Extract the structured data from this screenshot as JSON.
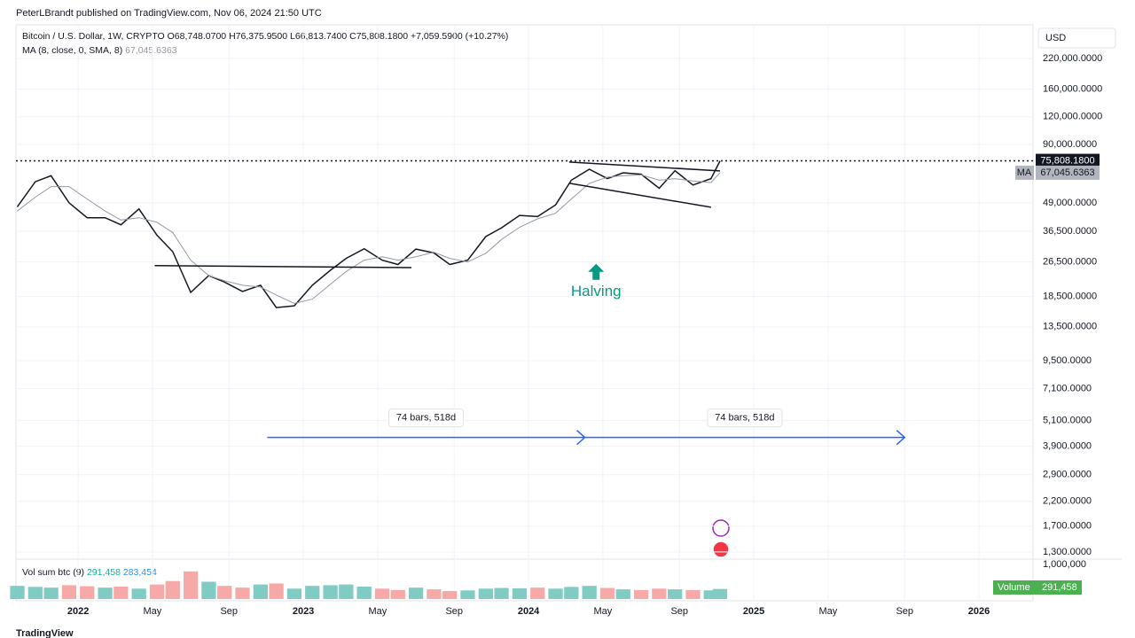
{
  "header": {
    "publisher": "PeterLBrandt published on TradingView.com, Nov 06, 2024 21:50 UTC",
    "footer": "TradingView"
  },
  "legend": {
    "symbol": "Bitcoin / U.S. Dollar, 1W, CRYPTO",
    "open": "O68,748.0700",
    "high": "H76,375.9500",
    "low": "L66,813.7400",
    "close": "C75,808.1800",
    "change": "+7,059.5900 (+10.27%)",
    "ma_label": "MA (8, close, 0, SMA, 8)",
    "ma_value": "67,045.6363"
  },
  "chart_data": {
    "type": "line",
    "log_scale": true,
    "grid": true,
    "currency": "USD",
    "price_badge": "75,808.1800",
    "ma_badge_tag": "MA",
    "x": [
      2021.73,
      2021.81,
      2021.88,
      2021.96,
      2022.04,
      2022.12,
      2022.19,
      2022.27,
      2022.35,
      2022.42,
      2022.5,
      2022.58,
      2022.65,
      2022.73,
      2022.81,
      2022.88,
      2022.96,
      2023.04,
      2023.12,
      2023.19,
      2023.27,
      2023.35,
      2023.42,
      2023.5,
      2023.58,
      2023.65,
      2023.73,
      2023.81,
      2023.88,
      2023.96,
      2024.04,
      2024.12,
      2024.19,
      2024.27,
      2024.35,
      2024.42,
      2024.5,
      2024.58,
      2024.65,
      2024.73,
      2024.81,
      2024.85
    ],
    "series": [
      {
        "name": "Bitcoin / U.S. Dollar",
        "color": "#131722",
        "values": [
          47000,
          61000,
          65000,
          49000,
          42000,
          42000,
          39000,
          46000,
          35000,
          29500,
          19300,
          23000,
          21500,
          19500,
          20800,
          16500,
          16800,
          20800,
          24300,
          27500,
          30400,
          27000,
          25800,
          30300,
          29100,
          25800,
          27000,
          34500,
          37800,
          43000,
          42500,
          48000,
          62000,
          69500,
          63000,
          67000,
          66000,
          57000,
          68500,
          59000,
          63000,
          75808.18
        ]
      },
      {
        "name": "MA",
        "color": "#9598a1",
        "values": [
          45000,
          52000,
          58000,
          58000,
          51000,
          45000,
          41000,
          42000,
          40000,
          36000,
          27000,
          23000,
          21800,
          20800,
          20400,
          18800,
          17200,
          18000,
          21000,
          24000,
          27000,
          28000,
          27000,
          28000,
          29300,
          27500,
          26500,
          29000,
          33500,
          38000,
          41500,
          44000,
          51000,
          60000,
          64000,
          65000,
          65500,
          62000,
          63000,
          61500,
          60500,
          67045.6363
        ]
      }
    ],
    "xlim": [
      2021.724,
      2026.24
    ],
    "xticks": [
      {
        "value": 2022,
        "label": "2022"
      },
      {
        "value": 2022.33,
        "label": "May"
      },
      {
        "value": 2022.67,
        "label": "Sep"
      },
      {
        "value": 2023,
        "label": "2023"
      },
      {
        "value": 2023.33,
        "label": "May"
      },
      {
        "value": 2023.67,
        "label": "Sep"
      },
      {
        "value": 2024,
        "label": "2024"
      },
      {
        "value": 2024.33,
        "label": "May"
      },
      {
        "value": 2024.67,
        "label": "Sep"
      },
      {
        "value": 2025,
        "label": "2025"
      },
      {
        "value": 2025.33,
        "label": "May"
      },
      {
        "value": 2025.67,
        "label": "Sep"
      },
      {
        "value": 2026,
        "label": "2026"
      }
    ],
    "ylim": [
      1110,
      312000
    ],
    "yticks": [
      {
        "value": 220000,
        "label": "220,000.0000"
      },
      {
        "value": 160000,
        "label": "160,000.0000"
      },
      {
        "value": 120000,
        "label": "120,000.0000"
      },
      {
        "value": 90000,
        "label": "90,000.0000"
      },
      {
        "value": 49000,
        "label": "49,000.0000"
      },
      {
        "value": 36500,
        "label": "36,500.0000"
      },
      {
        "value": 26500,
        "label": "26,500.0000"
      },
      {
        "value": 18500,
        "label": "18,500.0000"
      },
      {
        "value": 13500,
        "label": "13,500.0000"
      },
      {
        "value": 9500,
        "label": "9,500.0000"
      },
      {
        "value": 7100,
        "label": "7,100.0000"
      },
      {
        "value": 5100,
        "label": "5,100.0000"
      },
      {
        "value": 3900,
        "label": "3,900.0000"
      },
      {
        "value": 2900,
        "label": "2,900.0000"
      },
      {
        "value": 2200,
        "label": "2,200.0000"
      },
      {
        "value": 1700,
        "label": "1,700.0000"
      },
      {
        "value": 1300,
        "label": "1,300.0000"
      }
    ],
    "trendlines": [
      {
        "x": [
          2022.34,
          2023.48
        ],
        "y": [
          25500,
          25000
        ]
      },
      {
        "x": [
          2024.18,
          2024.85
        ],
        "y": [
          74900,
          68300
        ]
      },
      {
        "x": [
          2024.18,
          2024.81
        ],
        "y": [
          60100,
          46800
        ]
      }
    ],
    "measures": [
      {
        "x": [
          2022.84,
          2024.25
        ],
        "y": 4275,
        "label": "74 bars, 518d"
      },
      {
        "x": [
          2024.25,
          2025.67
        ],
        "y": 4275,
        "label": "74 bars, 518d"
      }
    ],
    "halving": {
      "text": "Halving",
      "x": 2024.3,
      "y": 19000,
      "color": "#089981"
    },
    "volume": {
      "title": "Vol sum btc (9)",
      "last": "291,458",
      "ma": "283,454",
      "badge": "Volume",
      "up_color": "#80cbc4",
      "down_color": "#f7a9a7",
      "ylim": [
        0,
        1000000
      ],
      "yticks": [
        {
          "value": 1000000,
          "label": "1,000,000"
        }
      ],
      "values": [
        380000,
        350000,
        330000,
        400000,
        370000,
        330000,
        360000,
        300000,
        420000,
        520000,
        800000,
        500000,
        380000,
        330000,
        420000,
        450000,
        300000,
        380000,
        400000,
        420000,
        360000,
        300000,
        260000,
        330000,
        280000,
        230000,
        250000,
        300000,
        320000,
        310000,
        330000,
        300000,
        350000,
        380000,
        320000,
        280000,
        260000,
        300000,
        280000,
        260000,
        250000,
        291458
      ]
    }
  }
}
